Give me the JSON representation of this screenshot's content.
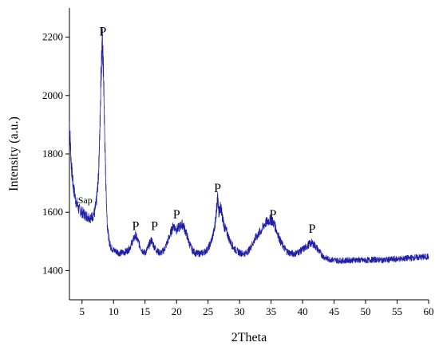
{
  "chart_data": {
    "type": "line",
    "title": "",
    "xlabel": "2Theta",
    "ylabel": "Intensity (a.u.)",
    "xlim": [
      3,
      60
    ],
    "ylim": [
      1300,
      2300
    ],
    "x_ticks": [
      5,
      10,
      15,
      20,
      25,
      30,
      35,
      40,
      45,
      50,
      55,
      60
    ],
    "y_ticks": [
      1400,
      1600,
      1800,
      2000,
      2200
    ],
    "grid": false,
    "legend": "none",
    "series": [
      {
        "color": "#1f1fa8",
        "x": [
          3.0,
          3.3,
          3.6,
          4.0,
          4.5,
          5.0,
          5.5,
          6.0,
          6.5,
          7.0,
          7.3,
          7.6,
          7.8,
          8.0,
          8.2,
          8.4,
          8.6,
          8.8,
          9.0,
          9.3,
          9.6,
          10.0,
          10.5,
          11.0,
          11.5,
          12.0,
          12.5,
          13.0,
          13.5,
          14.0,
          14.5,
          15.0,
          15.5,
          16.0,
          16.5,
          17.0,
          17.5,
          18.0,
          18.5,
          19.0,
          19.5,
          20.0,
          20.5,
          21.0,
          21.5,
          22.0,
          22.5,
          23.0,
          23.5,
          24.0,
          24.5,
          25.0,
          25.5,
          26.0,
          26.3,
          26.5,
          26.7,
          27.0,
          27.3,
          27.6,
          28.0,
          28.5,
          29.0,
          29.5,
          30.0,
          30.5,
          31.0,
          31.5,
          32.0,
          32.5,
          33.0,
          33.5,
          34.0,
          34.5,
          35.0,
          35.5,
          36.0,
          36.5,
          37.0,
          37.5,
          38.0,
          38.5,
          39.0,
          39.5,
          40.0,
          40.5,
          41.0,
          41.5,
          42.0,
          42.5,
          43.0,
          43.5,
          44.0,
          44.5,
          45.0,
          45.5,
          46.0,
          46.5,
          47.0,
          47.5,
          48.0,
          48.5,
          49.0,
          49.5,
          50.0,
          50.5,
          51.0,
          51.5,
          52.0,
          52.5,
          53.0,
          53.5,
          54.0,
          54.5,
          55.0,
          55.5,
          56.0,
          56.5,
          57.0,
          57.5,
          58.0,
          58.5,
          59.0,
          59.5,
          60.0
        ],
        "y": [
          1910,
          1760,
          1690,
          1640,
          1610,
          1600,
          1590,
          1585,
          1580,
          1600,
          1640,
          1720,
          1860,
          2060,
          2190,
          2080,
          1860,
          1680,
          1560,
          1500,
          1480,
          1470,
          1465,
          1460,
          1462,
          1465,
          1475,
          1500,
          1520,
          1495,
          1470,
          1460,
          1480,
          1505,
          1480,
          1465,
          1460,
          1470,
          1495,
          1525,
          1555,
          1540,
          1550,
          1560,
          1530,
          1495,
          1470,
          1460,
          1458,
          1460,
          1465,
          1475,
          1500,
          1540,
          1600,
          1650,
          1600,
          1620,
          1580,
          1550,
          1530,
          1500,
          1480,
          1468,
          1462,
          1458,
          1460,
          1470,
          1490,
          1510,
          1525,
          1540,
          1560,
          1570,
          1575,
          1560,
          1530,
          1500,
          1480,
          1466,
          1460,
          1458,
          1460,
          1465,
          1472,
          1480,
          1490,
          1495,
          1485,
          1470,
          1455,
          1445,
          1440,
          1438,
          1436,
          1435,
          1434,
          1434,
          1435,
          1436,
          1436,
          1437,
          1436,
          1435,
          1435,
          1436,
          1437,
          1438,
          1437,
          1436,
          1436,
          1437,
          1438,
          1439,
          1440,
          1440,
          1441,
          1442,
          1443,
          1444,
          1445,
          1446,
          1446,
          1447,
          1448
        ]
      }
    ],
    "annotations": [
      {
        "text": "P",
        "x": 8.3,
        "y": 2195
      },
      {
        "text": "Sap",
        "x": 5.5,
        "y": 1620
      },
      {
        "text": "P",
        "x": 13.5,
        "y": 1528
      },
      {
        "text": "P",
        "x": 16.5,
        "y": 1528
      },
      {
        "text": "P",
        "x": 20.0,
        "y": 1568
      },
      {
        "text": "P",
        "x": 26.5,
        "y": 1658
      },
      {
        "text": "P",
        "x": 35.3,
        "y": 1568
      },
      {
        "text": "P",
        "x": 41.5,
        "y": 1518
      }
    ]
  }
}
